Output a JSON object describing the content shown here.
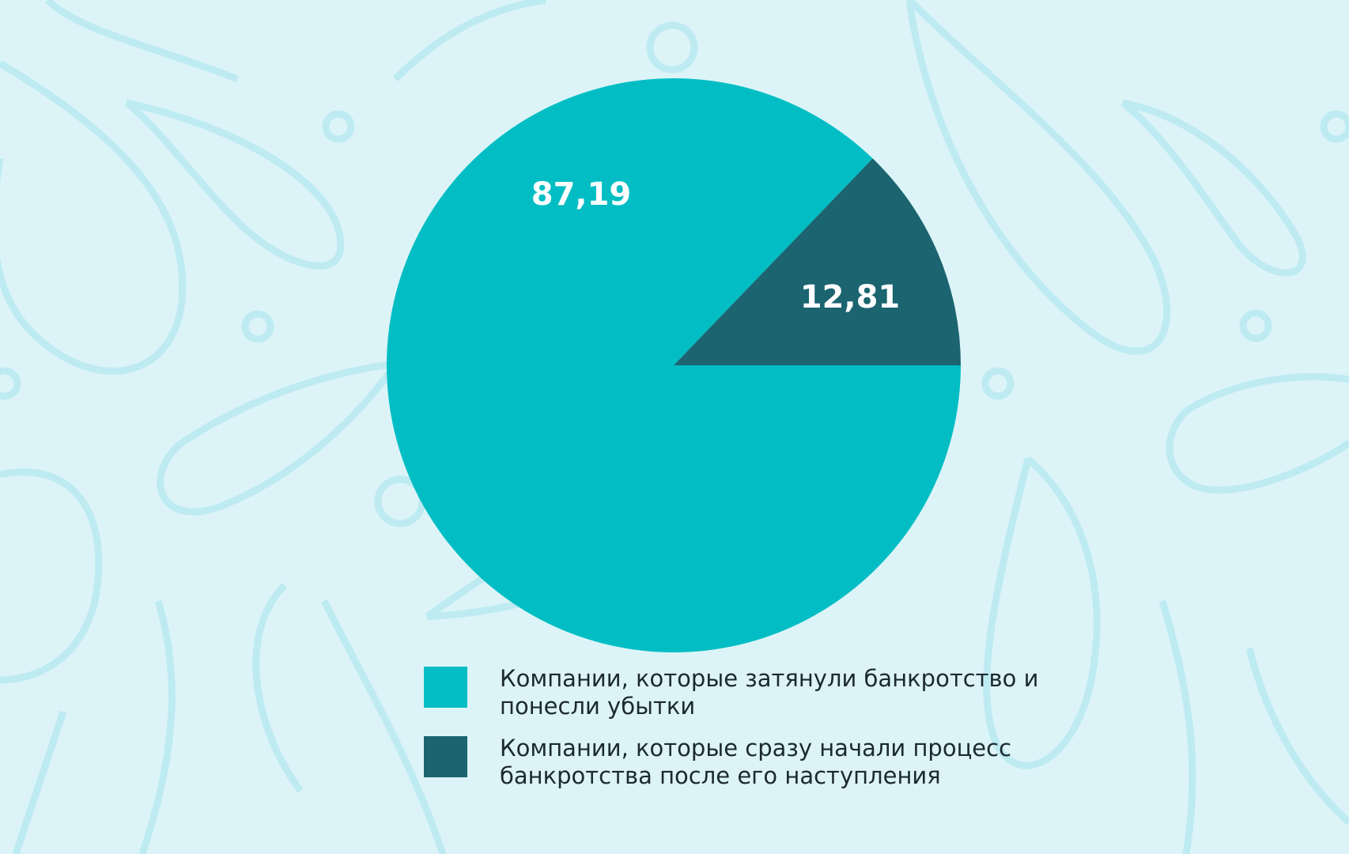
{
  "chart_data": {
    "type": "pie",
    "categories": [
      "Компании, которые затянули банкротство и понесли убытки",
      "Компании, которые сразу начали процесс банкротства после его наступления"
    ],
    "values": [
      87.19,
      12.81
    ],
    "value_labels": [
      "87,19",
      "12,81"
    ],
    "colors": [
      "#02bec4",
      "#1b6470"
    ]
  }
}
